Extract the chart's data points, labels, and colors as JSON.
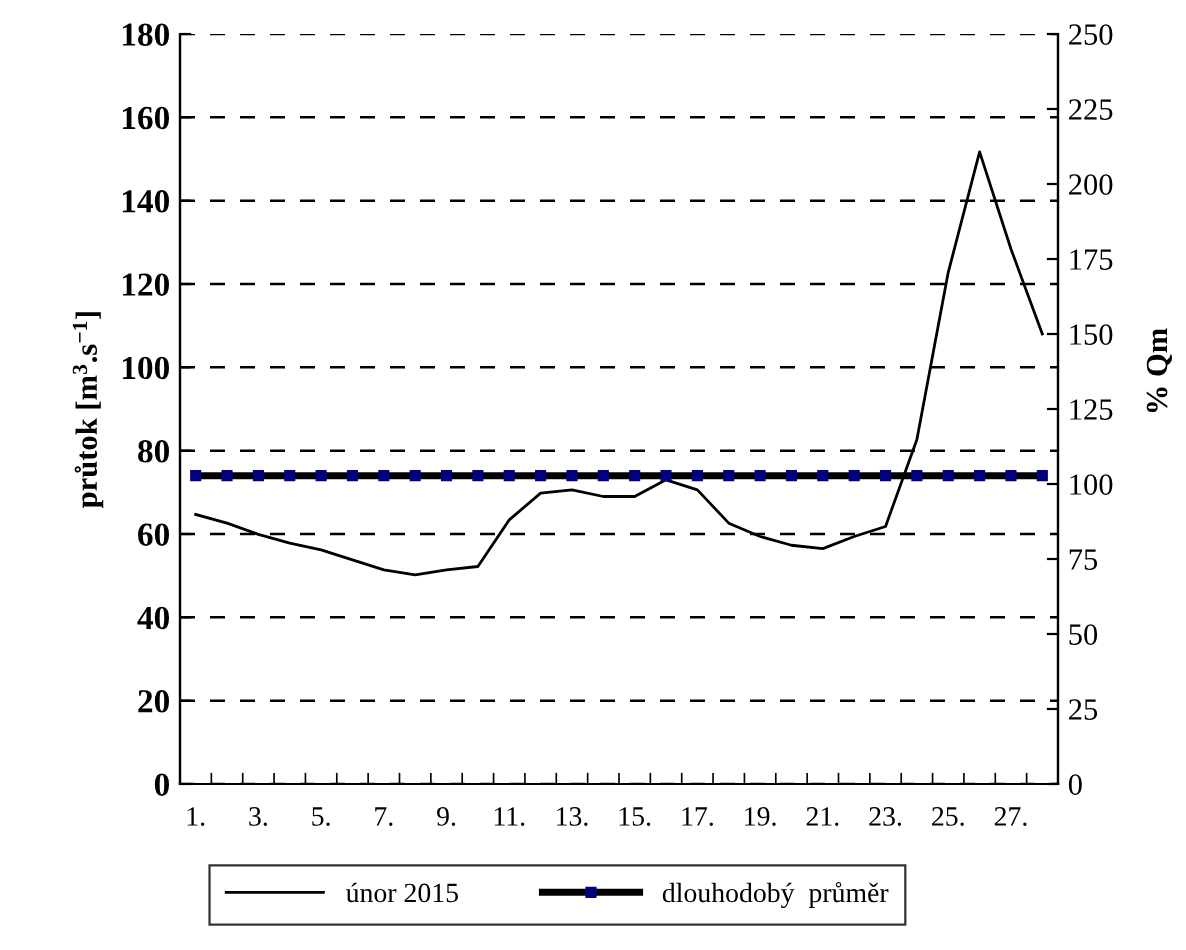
{
  "chart_data": {
    "type": "line",
    "categories": [
      "1.",
      null,
      "3.",
      null,
      "5.",
      null,
      "7.",
      null,
      "9.",
      null,
      "11.",
      null,
      "13.",
      null,
      "15.",
      null,
      "17.",
      null,
      "19.",
      null,
      "21.",
      null,
      "23.",
      null,
      "25.",
      null,
      "27.",
      null
    ],
    "series": [
      {
        "name": "únor 2015",
        "color": "#000000",
        "marker": "none",
        "values": [
          64.7,
          62.6,
          59.9,
          57.8,
          56.2,
          53.8,
          51.4,
          50.2,
          51.4,
          52.2,
          63.4,
          69.8,
          70.6,
          69.0,
          69.0,
          73.0,
          70.6,
          62.6,
          59.4,
          57.3,
          56.5,
          59.4,
          61.8,
          82.7,
          122.8,
          151.7,
          128.4,
          108.0
        ]
      },
      {
        "name": "dlouhodobý  průměr",
        "color": "#000080",
        "marker": "square",
        "values": [
          74,
          74,
          74,
          74,
          74,
          74,
          74,
          74,
          74,
          74,
          74,
          74,
          74,
          74,
          74,
          74,
          74,
          74,
          74,
          74,
          74,
          74,
          74,
          74,
          74,
          74,
          74,
          74
        ]
      }
    ],
    "ylabel": "průtok [m$^{3}$.s$^{−1}$]",
    "y2label": "% Qm",
    "ylim": [
      0,
      180
    ],
    "yticks": [
      0,
      20,
      40,
      60,
      80,
      100,
      120,
      140,
      160,
      180
    ],
    "y2lim": [
      0,
      250
    ],
    "y2ticks": [
      0,
      25,
      50,
      75,
      100,
      125,
      150,
      175,
      200,
      225,
      250
    ],
    "grid": "y",
    "legend": "bottom",
    "line_style": "solid"
  }
}
